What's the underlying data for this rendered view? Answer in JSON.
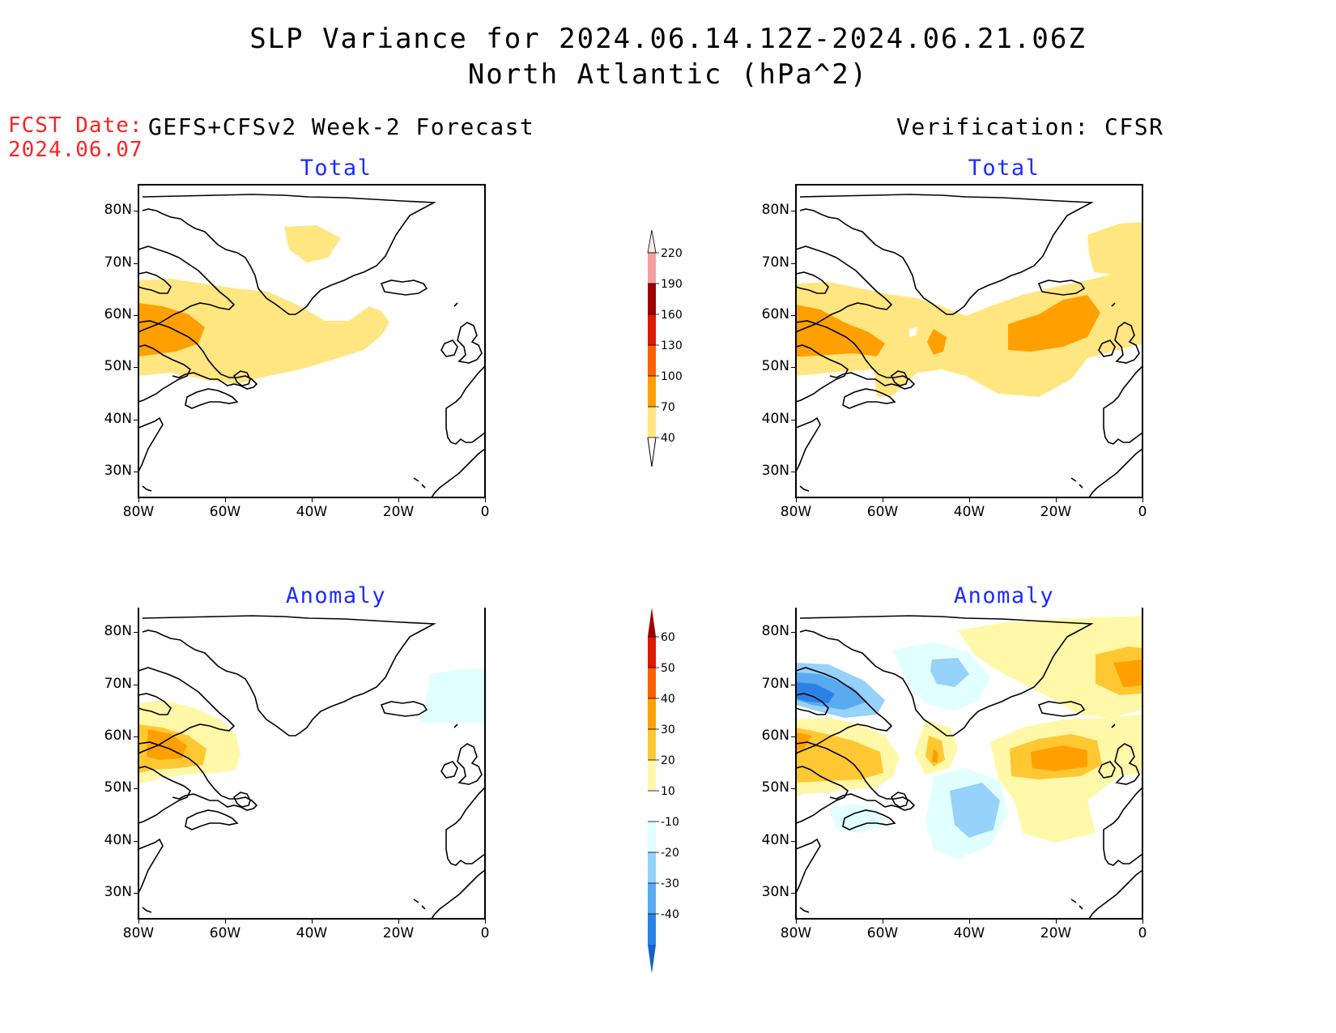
{
  "header": {
    "title_line1": "SLP Variance for 2024.06.14.12Z-2024.06.21.06Z",
    "title_line2": "North Atlantic (hPa^2)",
    "fcst_date_label": "FCST Date:",
    "fcst_date_value": "2024.06.07",
    "left_model": "GEFS+CFSv2 Week-2 Forecast",
    "right_model": "Verification: CFSR"
  },
  "panels": {
    "top_left_title": "Total",
    "top_right_title": "Total",
    "bottom_left_title": "Anomaly",
    "bottom_right_title": "Anomaly"
  },
  "axes": {
    "lat_labels": [
      "80N",
      "70N",
      "60N",
      "50N",
      "40N",
      "30N"
    ],
    "lon_labels": [
      "80W",
      "60W",
      "40W",
      "20W",
      "0"
    ],
    "lat_range": [
      25,
      85
    ],
    "lon_range": [
      -80,
      0
    ]
  },
  "colorbars": {
    "total_levels": [
      "40",
      "70",
      "100",
      "130",
      "160",
      "190",
      "220"
    ],
    "total_colors": [
      "#ffe680",
      "#ffa000",
      "#ff6000",
      "#e01a00",
      "#a00000",
      "#f4a0a0",
      "#fce8e8"
    ],
    "anomaly_levels": [
      "-40",
      "-30",
      "-20",
      "-10",
      "10",
      "20",
      "30",
      "40",
      "50",
      "60"
    ],
    "anomaly_colors": [
      "#1460d0",
      "#2a82e8",
      "#5aaaf0",
      "#96d2fa",
      "#e1ffff",
      "#ffffff",
      "#fff8a8",
      "#ffc832",
      "#ffa000",
      "#ff6000",
      "#e01a00",
      "#a00000"
    ]
  },
  "colors": {
    "title_fcst": "#ff2222",
    "subtitle": "#1c2cff",
    "yellow": "#ffe680",
    "orange": "#ffa000",
    "pale_yellow": "#fff8a8",
    "light_orange": "#ffc832",
    "pale_cyan": "#e1ffff",
    "light_blue": "#96d2fa",
    "mid_blue": "#5aaaf0"
  }
}
